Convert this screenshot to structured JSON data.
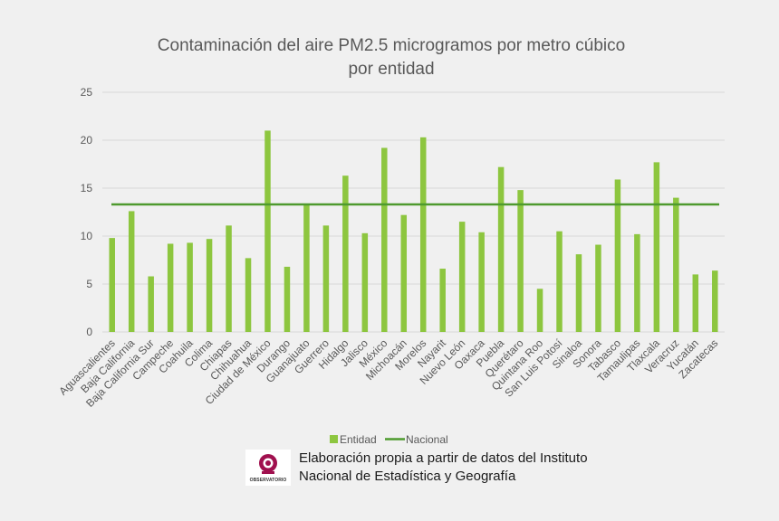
{
  "chart_data": {
    "type": "bar",
    "title_lines": [
      "Contaminación del aire PM2.5 microgramos por metro cúbico",
      "por entidad"
    ],
    "categories": [
      "Aguascalientes",
      "Baja California",
      "Baja California Sur",
      "Campeche",
      "Coahuila",
      "Colima",
      "Chiapas",
      "Chihuahua",
      "Ciudad de México",
      "Durango",
      "Guanajuato",
      "Guerrero",
      "Hidalgo",
      "Jalisco",
      "México",
      "Michoacán",
      "Morelos",
      "Nayarit",
      "Nuevo León",
      "Oaxaca",
      "Puebla",
      "Querétaro",
      "Quintana Roo",
      "San Luis Potosí",
      "Sinaloa",
      "Sonora",
      "Tabasco",
      "Tamaulipas",
      "Tlaxcala",
      "Veracruz",
      "Yucatán",
      "Zacatecas"
    ],
    "series": [
      {
        "name": "Entidad",
        "type": "bar",
        "color": "#8dc63f",
        "values": [
          9.8,
          12.6,
          5.8,
          9.2,
          9.3,
          9.7,
          11.1,
          7.7,
          21.0,
          6.8,
          13.3,
          11.1,
          16.3,
          10.3,
          19.2,
          12.2,
          20.3,
          6.6,
          11.5,
          10.4,
          17.2,
          14.8,
          4.5,
          10.5,
          8.1,
          9.1,
          15.9,
          10.2,
          17.7,
          14.0,
          6.0,
          6.4
        ]
      },
      {
        "name": "Nacional",
        "type": "line",
        "color": "#4e9a2e",
        "value": 13.3
      }
    ],
    "ylim": [
      0,
      25
    ],
    "yticks": [
      0,
      5,
      10,
      15,
      20,
      25
    ],
    "grid": true,
    "legend": "bottom"
  },
  "footer": {
    "logo_text": "OBSERVATORIO",
    "source_line1": "Elaboración propia a partir de datos del Instituto",
    "source_line2": "Nacional de Estadística y Geografía"
  }
}
